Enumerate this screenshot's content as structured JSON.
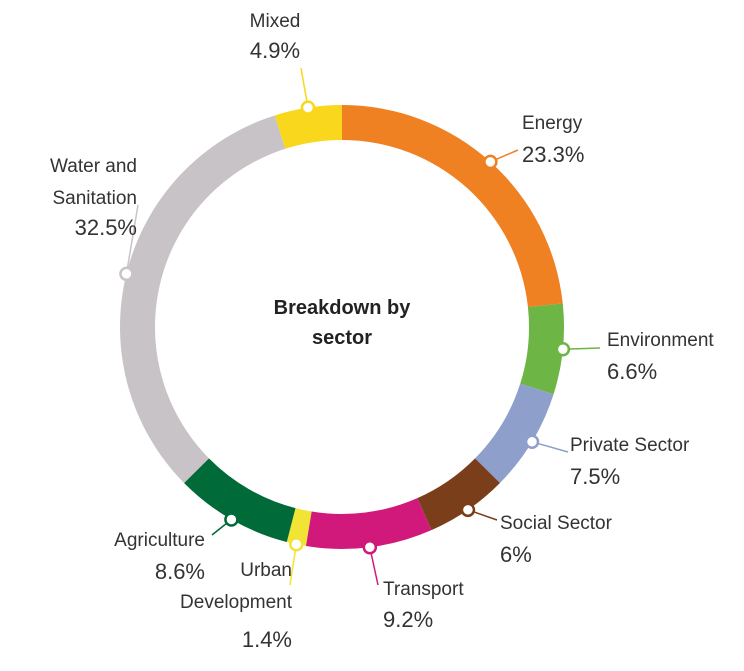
{
  "chart_data": {
    "type": "donut",
    "title": "Breakdown by sector",
    "categories": [
      "Energy",
      "Environment",
      "Private Sector",
      "Social Sector",
      "Transport",
      "Urban Development",
      "Agriculture",
      "Water and Sanitation",
      "Mixed"
    ],
    "values": [
      23.3,
      6.6,
      7.5,
      6,
      9.2,
      1.4,
      8.6,
      32.5,
      4.9
    ],
    "value_labels": [
      "23.3%",
      "6.6%",
      "7.5%",
      "6%",
      "9.2%",
      "1.4%",
      "8.6%",
      "32.5%",
      "4.9%"
    ],
    "colors": [
      "#f08122",
      "#6db545",
      "#8f9fcb",
      "#7a3f1a",
      "#d0197a",
      "#f2e434",
      "#006a38",
      "#c8c3c7",
      "#f9d71c"
    ]
  }
}
